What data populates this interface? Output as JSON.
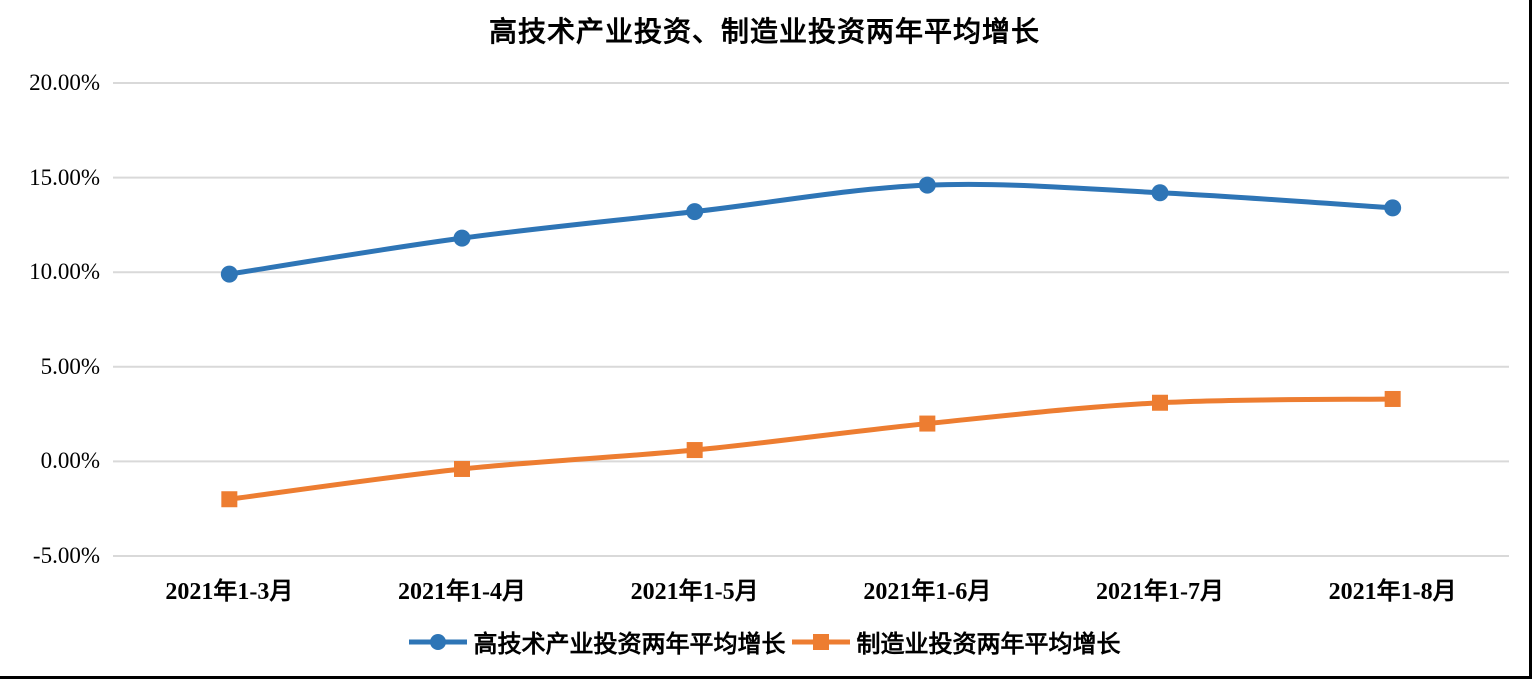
{
  "chart_data": {
    "type": "line",
    "title": "高技术产业投资、制造业投资两年平均增长",
    "categories": [
      "2021年1-3月",
      "2021年1-4月",
      "2021年1-5月",
      "2021年1-6月",
      "2021年1-7月",
      "2021年1-8月"
    ],
    "series": [
      {
        "name": "高技术产业投资两年平均增长",
        "color": "#2E75B6",
        "marker": "circle",
        "values": [
          9.9,
          11.8,
          13.2,
          14.6,
          14.2,
          13.4
        ]
      },
      {
        "name": "制造业投资两年平均增长",
        "color": "#ED7D31",
        "marker": "square",
        "values": [
          -2.0,
          -0.4,
          0.6,
          2.0,
          3.1,
          3.3
        ]
      }
    ],
    "y_axis": {
      "min": -5,
      "max": 20,
      "step": 5,
      "format": "percent",
      "ticks": [
        {
          "value": 20,
          "label": "20.00%"
        },
        {
          "value": 15,
          "label": "15.00%"
        },
        {
          "value": 10,
          "label": "10.00%"
        },
        {
          "value": 5,
          "label": "5.00%"
        },
        {
          "value": 0,
          "label": "0.00%"
        },
        {
          "value": -5,
          "label": "-5.00%"
        }
      ]
    },
    "grid": true,
    "gridline_color": "#D9D9D9",
    "background_color": "#FFFFFF",
    "legend_position": "bottom"
  }
}
